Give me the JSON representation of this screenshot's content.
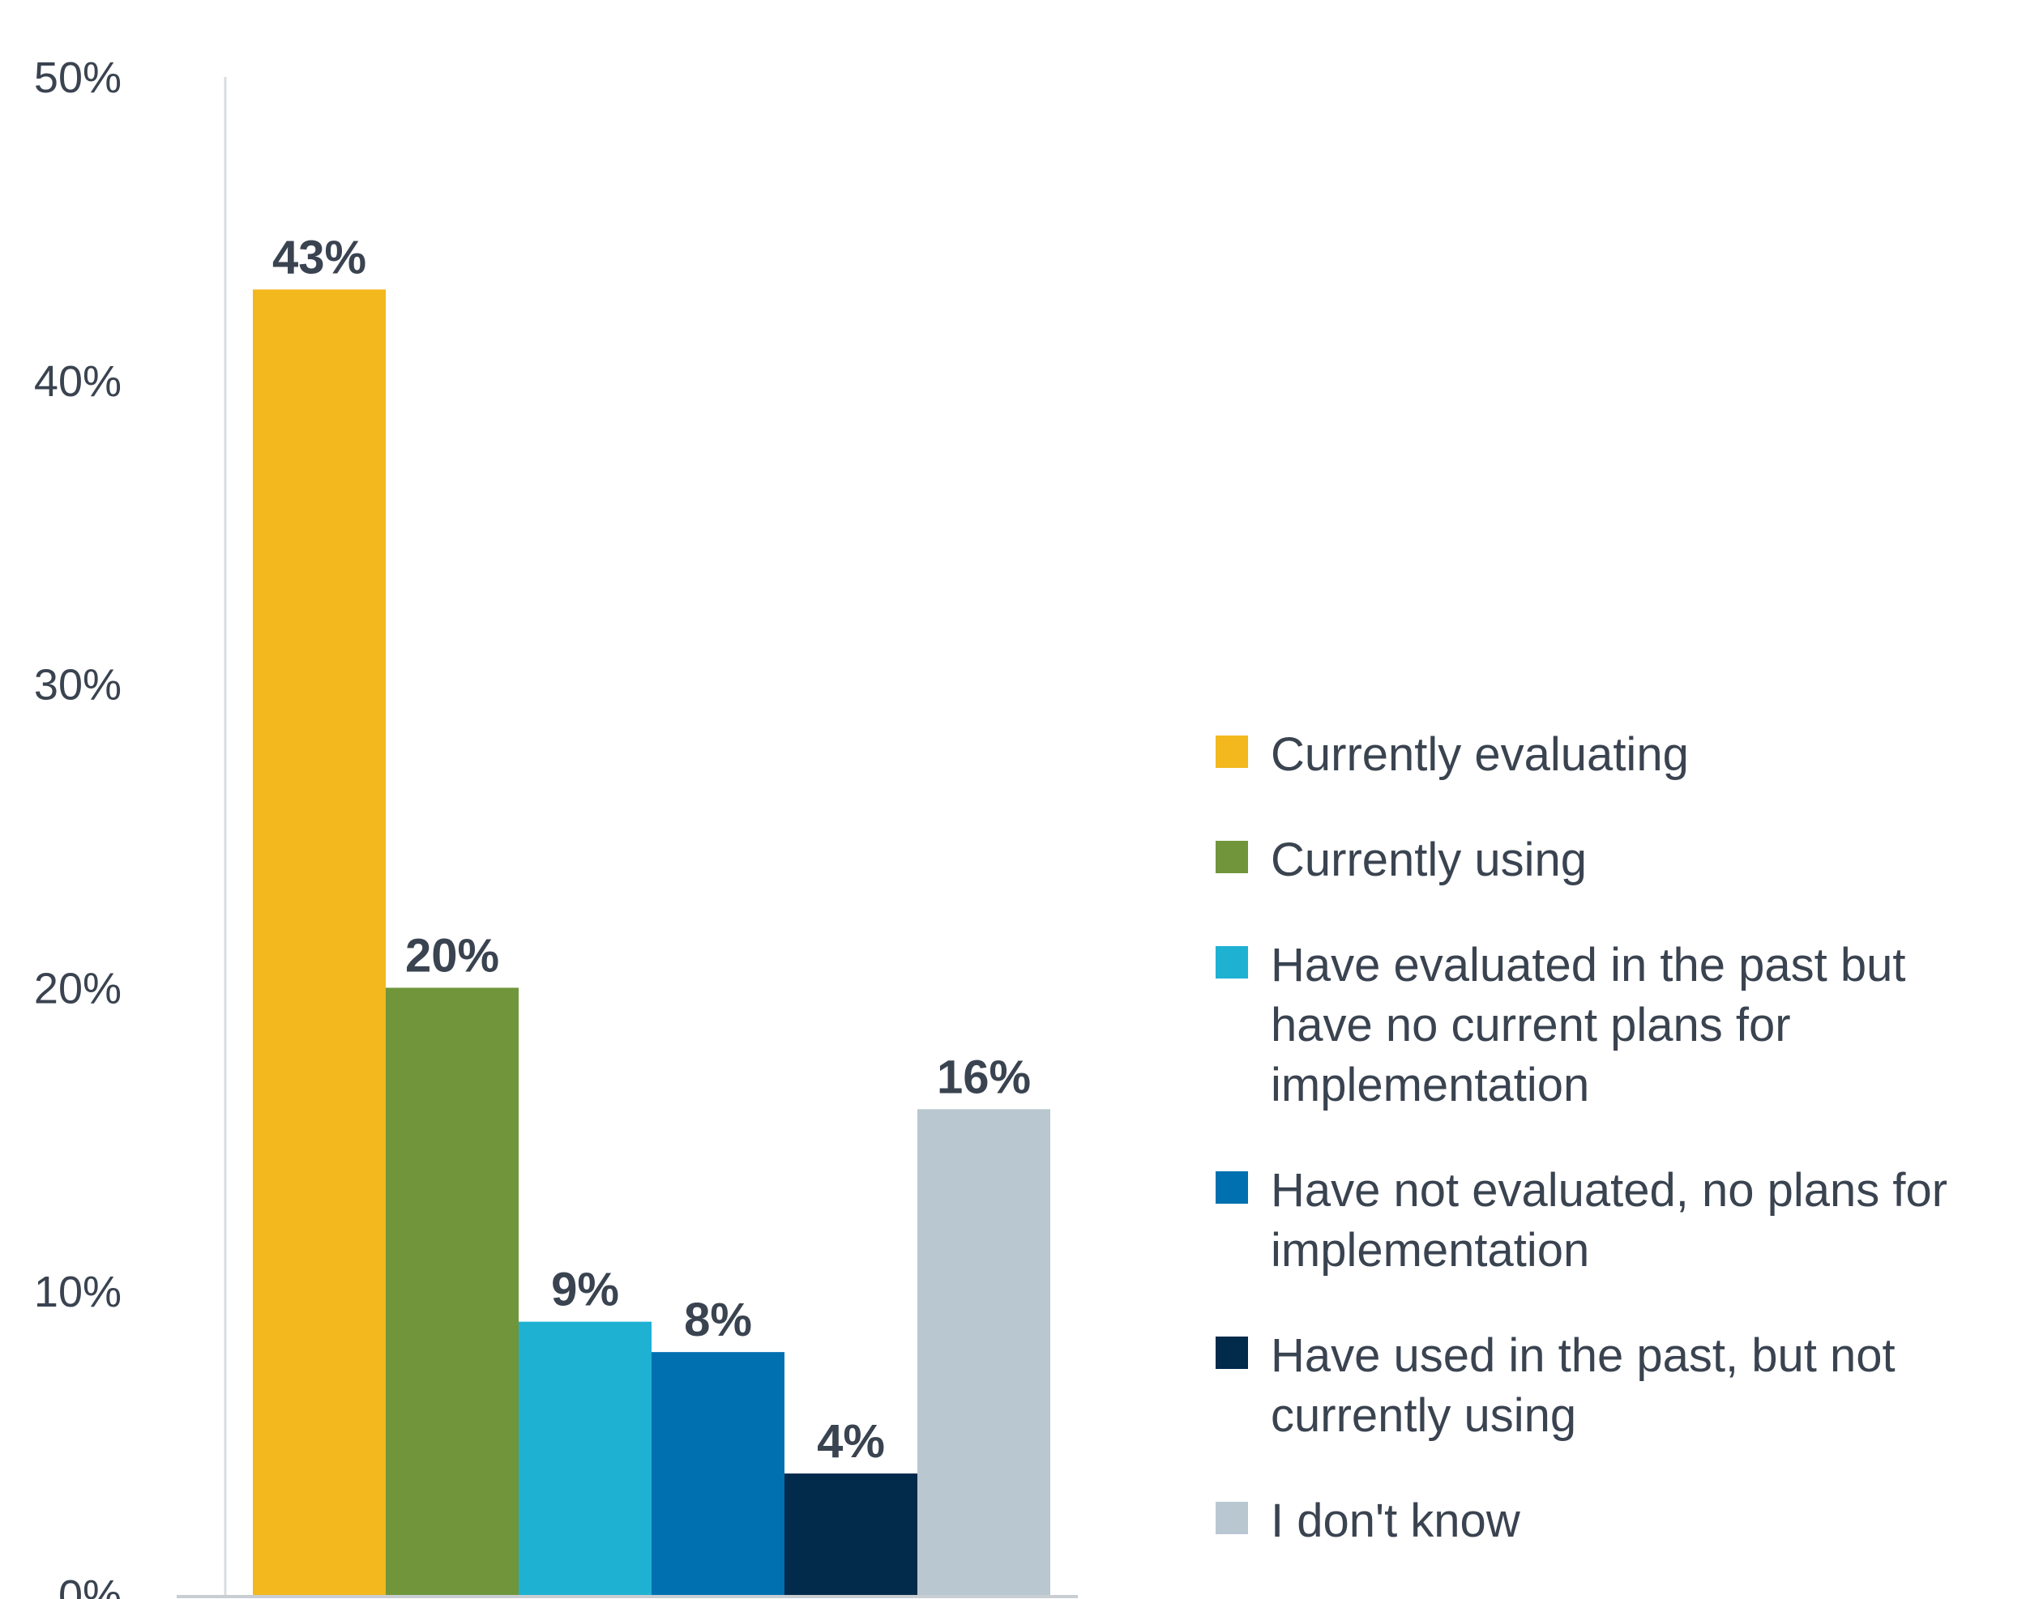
{
  "chart_data": {
    "type": "bar",
    "categories": [
      "Currently evaluating",
      "Currently using",
      "Have evaluated in the past but have no current plans for implementation",
      "Have not evaluated, no plans for implementation",
      "Have used in the past, but not currently using",
      "I don't know"
    ],
    "values": [
      43,
      20,
      9,
      8,
      4,
      16
    ],
    "data_labels": [
      "43%",
      "20%",
      "9%",
      "8%",
      "4%",
      "16%"
    ],
    "colors": [
      "#F2B81D",
      "#70953B",
      "#1EB1D2",
      "#0070B1",
      "#022A4B",
      "#B9C7D1"
    ],
    "ylim": [
      0,
      50
    ],
    "yticks": [
      0,
      10,
      20,
      30,
      40,
      50
    ],
    "ytick_labels": [
      "0%",
      "10%",
      "20%",
      "30%",
      "40%",
      "50%"
    ],
    "grid": false,
    "legend_position": "right",
    "legend": [
      {
        "label": "Currently evaluating",
        "color": "#F2B81D"
      },
      {
        "label": "Currently using",
        "color": "#70953B"
      },
      {
        "label": "Have evaluated in the past but have no current plans for implementation",
        "color": "#1EB1D2"
      },
      {
        "label": "Have not evaluated, no plans for implementation",
        "color": "#0070B1"
      },
      {
        "label": "Have used in the past, but not currently using",
        "color": "#022A4B"
      },
      {
        "label": "I don't know",
        "color": "#B9C7D1"
      }
    ]
  }
}
